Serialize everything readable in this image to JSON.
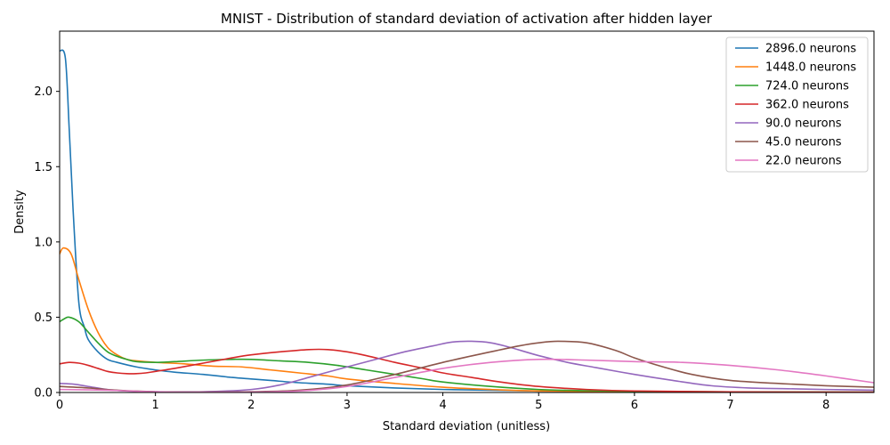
{
  "chart_data": {
    "type": "line",
    "title": "MNIST - Distribution of standard deviation of activation after hidden layer",
    "xlabel": "Standard deviation (unitless)",
    "ylabel": "Density",
    "xlim": [
      0,
      8.5
    ],
    "ylim": [
      0,
      2.4
    ],
    "xticks": [
      0,
      1,
      2,
      3,
      4,
      5,
      6,
      7,
      8
    ],
    "xtick_labels": [
      "0",
      "1",
      "2",
      "3",
      "4",
      "5",
      "6",
      "7",
      "8"
    ],
    "yticks": [
      0.0,
      0.5,
      1.0,
      1.5,
      2.0
    ],
    "ytick_labels": [
      "0.0",
      "0.5",
      "1.0",
      "1.5",
      "2.0"
    ],
    "grid": false,
    "legend_position": "top-right",
    "series": [
      {
        "name": "2896.0 neurons",
        "color": "#1f77b4",
        "points": [
          [
            0,
            2.27
          ],
          [
            0.06,
            2.22
          ],
          [
            0.1,
            1.75
          ],
          [
            0.14,
            1.22
          ],
          [
            0.2,
            0.6
          ],
          [
            0.26,
            0.43
          ],
          [
            0.3,
            0.35
          ],
          [
            0.4,
            0.27
          ],
          [
            0.5,
            0.22
          ],
          [
            0.6,
            0.2
          ],
          [
            0.8,
            0.17
          ],
          [
            1.0,
            0.15
          ],
          [
            1.2,
            0.135
          ],
          [
            1.5,
            0.12
          ],
          [
            1.8,
            0.1
          ],
          [
            2.0,
            0.09
          ],
          [
            2.2,
            0.08
          ],
          [
            2.5,
            0.065
          ],
          [
            2.8,
            0.055
          ],
          [
            3.0,
            0.045
          ],
          [
            3.5,
            0.03
          ],
          [
            4.0,
            0.02
          ],
          [
            4.5,
            0.015
          ],
          [
            5.0,
            0.01
          ],
          [
            6.0,
            0.005
          ],
          [
            7.0,
            0.003
          ],
          [
            8.5,
            0.002
          ]
        ]
      },
      {
        "name": "1448.0 neurons",
        "color": "#ff7f0e",
        "points": [
          [
            0,
            0.92
          ],
          [
            0.04,
            0.96
          ],
          [
            0.12,
            0.92
          ],
          [
            0.2,
            0.75
          ],
          [
            0.3,
            0.55
          ],
          [
            0.4,
            0.4
          ],
          [
            0.5,
            0.3
          ],
          [
            0.6,
            0.25
          ],
          [
            0.7,
            0.22
          ],
          [
            0.8,
            0.21
          ],
          [
            1.0,
            0.2
          ],
          [
            1.3,
            0.19
          ],
          [
            1.6,
            0.175
          ],
          [
            1.9,
            0.17
          ],
          [
            2.2,
            0.15
          ],
          [
            2.5,
            0.13
          ],
          [
            2.8,
            0.11
          ],
          [
            3.0,
            0.09
          ],
          [
            3.5,
            0.06
          ],
          [
            4.0,
            0.035
          ],
          [
            4.5,
            0.02
          ],
          [
            5.0,
            0.01
          ],
          [
            6.0,
            0.005
          ],
          [
            7.0,
            0.003
          ],
          [
            8.5,
            0.002
          ]
        ]
      },
      {
        "name": "724.0 neurons",
        "color": "#2ca02c",
        "points": [
          [
            0,
            0.47
          ],
          [
            0.05,
            0.49
          ],
          [
            0.1,
            0.5
          ],
          [
            0.2,
            0.47
          ],
          [
            0.3,
            0.4
          ],
          [
            0.4,
            0.33
          ],
          [
            0.5,
            0.27
          ],
          [
            0.6,
            0.24
          ],
          [
            0.7,
            0.22
          ],
          [
            0.8,
            0.205
          ],
          [
            1.0,
            0.2
          ],
          [
            1.2,
            0.205
          ],
          [
            1.5,
            0.215
          ],
          [
            1.8,
            0.22
          ],
          [
            2.0,
            0.22
          ],
          [
            2.3,
            0.21
          ],
          [
            2.6,
            0.2
          ],
          [
            2.9,
            0.18
          ],
          [
            3.2,
            0.15
          ],
          [
            3.5,
            0.12
          ],
          [
            3.8,
            0.09
          ],
          [
            4.0,
            0.07
          ],
          [
            4.5,
            0.04
          ],
          [
            5.0,
            0.02
          ],
          [
            5.5,
            0.012
          ],
          [
            6.0,
            0.008
          ],
          [
            7.0,
            0.004
          ],
          [
            8.5,
            0.002
          ]
        ]
      },
      {
        "name": "362.0 neurons",
        "color": "#d62728",
        "points": [
          [
            0,
            0.19
          ],
          [
            0.1,
            0.2
          ],
          [
            0.2,
            0.195
          ],
          [
            0.3,
            0.18
          ],
          [
            0.4,
            0.16
          ],
          [
            0.5,
            0.14
          ],
          [
            0.6,
            0.13
          ],
          [
            0.7,
            0.125
          ],
          [
            0.8,
            0.125
          ],
          [
            0.9,
            0.13
          ],
          [
            1.0,
            0.14
          ],
          [
            1.2,
            0.16
          ],
          [
            1.5,
            0.195
          ],
          [
            1.8,
            0.23
          ],
          [
            2.0,
            0.25
          ],
          [
            2.3,
            0.27
          ],
          [
            2.6,
            0.285
          ],
          [
            2.8,
            0.285
          ],
          [
            3.0,
            0.27
          ],
          [
            3.2,
            0.245
          ],
          [
            3.5,
            0.2
          ],
          [
            3.8,
            0.16
          ],
          [
            4.0,
            0.13
          ],
          [
            4.3,
            0.1
          ],
          [
            4.6,
            0.07
          ],
          [
            5.0,
            0.04
          ],
          [
            5.5,
            0.02
          ],
          [
            6.0,
            0.01
          ],
          [
            7.0,
            0.004
          ],
          [
            8.5,
            0.002
          ]
        ]
      },
      {
        "name": "90.0 neurons",
        "color": "#9467bd",
        "points": [
          [
            0,
            0.06
          ],
          [
            0.15,
            0.055
          ],
          [
            0.3,
            0.04
          ],
          [
            0.5,
            0.02
          ],
          [
            0.7,
            0.01
          ],
          [
            1.0,
            0.005
          ],
          [
            1.5,
            0.005
          ],
          [
            2.0,
            0.02
          ],
          [
            2.3,
            0.05
          ],
          [
            2.6,
            0.1
          ],
          [
            3.0,
            0.17
          ],
          [
            3.3,
            0.22
          ],
          [
            3.6,
            0.27
          ],
          [
            3.9,
            0.31
          ],
          [
            4.1,
            0.335
          ],
          [
            4.3,
            0.34
          ],
          [
            4.5,
            0.33
          ],
          [
            4.7,
            0.3
          ],
          [
            5.0,
            0.245
          ],
          [
            5.3,
            0.2
          ],
          [
            5.6,
            0.165
          ],
          [
            6.0,
            0.12
          ],
          [
            6.4,
            0.08
          ],
          [
            6.8,
            0.045
          ],
          [
            7.2,
            0.03
          ],
          [
            7.6,
            0.025
          ],
          [
            8.0,
            0.02
          ],
          [
            8.5,
            0.015
          ]
        ]
      },
      {
        "name": "45.0 neurons",
        "color": "#8c564b",
        "points": [
          [
            0,
            0.04
          ],
          [
            0.3,
            0.03
          ],
          [
            0.6,
            0.015
          ],
          [
            1.0,
            0.005
          ],
          [
            1.5,
            0.003
          ],
          [
            2.0,
            0.005
          ],
          [
            2.5,
            0.015
          ],
          [
            3.0,
            0.05
          ],
          [
            3.5,
            0.12
          ],
          [
            4.0,
            0.2
          ],
          [
            4.5,
            0.27
          ],
          [
            4.8,
            0.31
          ],
          [
            5.0,
            0.33
          ],
          [
            5.2,
            0.34
          ],
          [
            5.5,
            0.33
          ],
          [
            5.8,
            0.28
          ],
          [
            6.0,
            0.23
          ],
          [
            6.3,
            0.17
          ],
          [
            6.6,
            0.12
          ],
          [
            7.0,
            0.08
          ],
          [
            7.5,
            0.06
          ],
          [
            8.0,
            0.045
          ],
          [
            8.5,
            0.035
          ]
        ]
      },
      {
        "name": "22.0 neurons",
        "color": "#e377c2",
        "points": [
          [
            0,
            0.02
          ],
          [
            0.5,
            0.015
          ],
          [
            1.0,
            0.005
          ],
          [
            1.5,
            0.002
          ],
          [
            2.0,
            0.003
          ],
          [
            2.5,
            0.01
          ],
          [
            3.0,
            0.04
          ],
          [
            3.5,
            0.1
          ],
          [
            4.0,
            0.16
          ],
          [
            4.5,
            0.2
          ],
          [
            5.0,
            0.22
          ],
          [
            5.5,
            0.215
          ],
          [
            6.0,
            0.205
          ],
          [
            6.5,
            0.2
          ],
          [
            7.0,
            0.18
          ],
          [
            7.5,
            0.15
          ],
          [
            8.0,
            0.11
          ],
          [
            8.5,
            0.065
          ]
        ]
      }
    ]
  }
}
